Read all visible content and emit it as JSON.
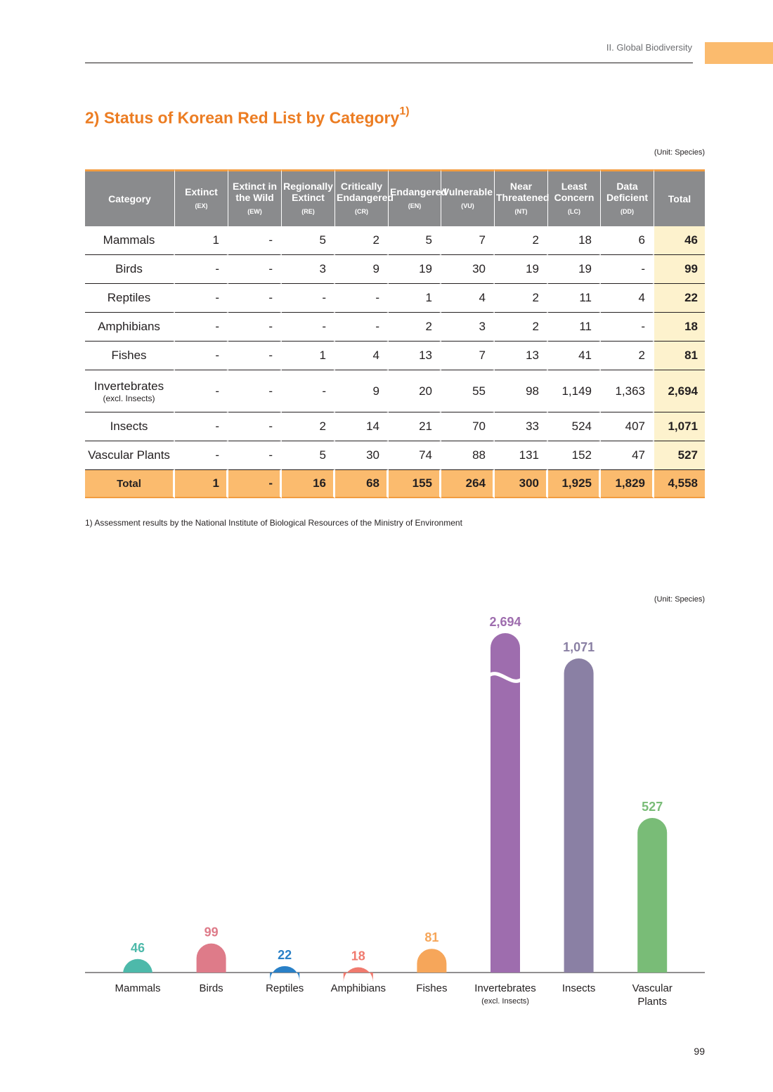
{
  "header": {
    "section": "II. Global Biodiversity"
  },
  "title": {
    "text": "2) Status of Korean Red List by Category",
    "sup": "1)"
  },
  "table": {
    "unit": "(Unit: Species)",
    "columns": [
      {
        "label": "Category",
        "abbr": ""
      },
      {
        "label": "Extinct",
        "abbr": "(EX)"
      },
      {
        "label": "Extinct in the Wild",
        "abbr": "(EW)"
      },
      {
        "label": "Regionally Extinct",
        "abbr": "(RE)"
      },
      {
        "label": "Critically Endangered",
        "abbr": "(CR)"
      },
      {
        "label": "Endangered",
        "abbr": "(EN)"
      },
      {
        "label": "Vulnerable",
        "abbr": "(VU)"
      },
      {
        "label": "Near Threatened",
        "abbr": "(NT)"
      },
      {
        "label": "Least Concern",
        "abbr": "(LC)"
      },
      {
        "label": "Data Deficient",
        "abbr": "(DD)"
      },
      {
        "label": "Total",
        "abbr": ""
      }
    ],
    "rows": [
      {
        "category": "Mammals",
        "sub": "",
        "values": [
          "1",
          "-",
          "5",
          "2",
          "5",
          "7",
          "2",
          "18",
          "6"
        ],
        "total": "46"
      },
      {
        "category": "Birds",
        "sub": "",
        "values": [
          "-",
          "-",
          "3",
          "9",
          "19",
          "30",
          "19",
          "19",
          "-"
        ],
        "total": "99"
      },
      {
        "category": "Reptiles",
        "sub": "",
        "values": [
          "-",
          "-",
          "-",
          "-",
          "1",
          "4",
          "2",
          "11",
          "4"
        ],
        "total": "22"
      },
      {
        "category": "Amphibians",
        "sub": "",
        "values": [
          "-",
          "-",
          "-",
          "-",
          "2",
          "3",
          "2",
          "11",
          "-"
        ],
        "total": "18"
      },
      {
        "category": "Fishes",
        "sub": "",
        "values": [
          "-",
          "-",
          "1",
          "4",
          "13",
          "7",
          "13",
          "41",
          "2"
        ],
        "total": "81"
      },
      {
        "category": "Invertebrates",
        "sub": "(excl. Insects)",
        "values": [
          "-",
          "-",
          "-",
          "9",
          "20",
          "55",
          "98",
          "1,149",
          "1,363"
        ],
        "total": "2,694"
      },
      {
        "category": "Insects",
        "sub": "",
        "values": [
          "-",
          "-",
          "2",
          "14",
          "21",
          "70",
          "33",
          "524",
          "407"
        ],
        "total": "1,071"
      },
      {
        "category": "Vascular Plants",
        "sub": "",
        "values": [
          "-",
          "-",
          "5",
          "30",
          "74",
          "88",
          "131",
          "152",
          "47"
        ],
        "total": "527"
      }
    ],
    "total_row": {
      "category": "Total",
      "values": [
        "1",
        "-",
        "16",
        "68",
        "155",
        "264",
        "300",
        "1,925",
        "1,829"
      ],
      "total": "4,558"
    }
  },
  "footnote": "1) Assessment results by the National Institute of Biological Resources of the Ministry of Environment",
  "chart_data": {
    "type": "bar",
    "title": "",
    "unit": "(Unit: Species)",
    "categories": [
      "Mammals",
      "Birds",
      "Reptiles",
      "Amphibians",
      "Fishes",
      "Invertebrates",
      "Insects",
      "Vascular Plants"
    ],
    "subcategories": [
      "",
      "",
      "",
      "",
      "",
      "(excl. Insects)",
      "",
      ""
    ],
    "values": [
      46,
      99,
      22,
      18,
      81,
      2694,
      1071,
      527
    ],
    "value_labels": [
      "46",
      "99",
      "22",
      "18",
      "81",
      "2,694",
      "1,071",
      "527"
    ],
    "colors": [
      "#4db9aa",
      "#de7b89",
      "#2980c7",
      "#f07a6e",
      "#f6a65a",
      "#9e6dae",
      "#8a80a4",
      "#79bc77"
    ],
    "axis_broken": true,
    "xlabel": "",
    "ylabel": ""
  },
  "page_number": "99"
}
